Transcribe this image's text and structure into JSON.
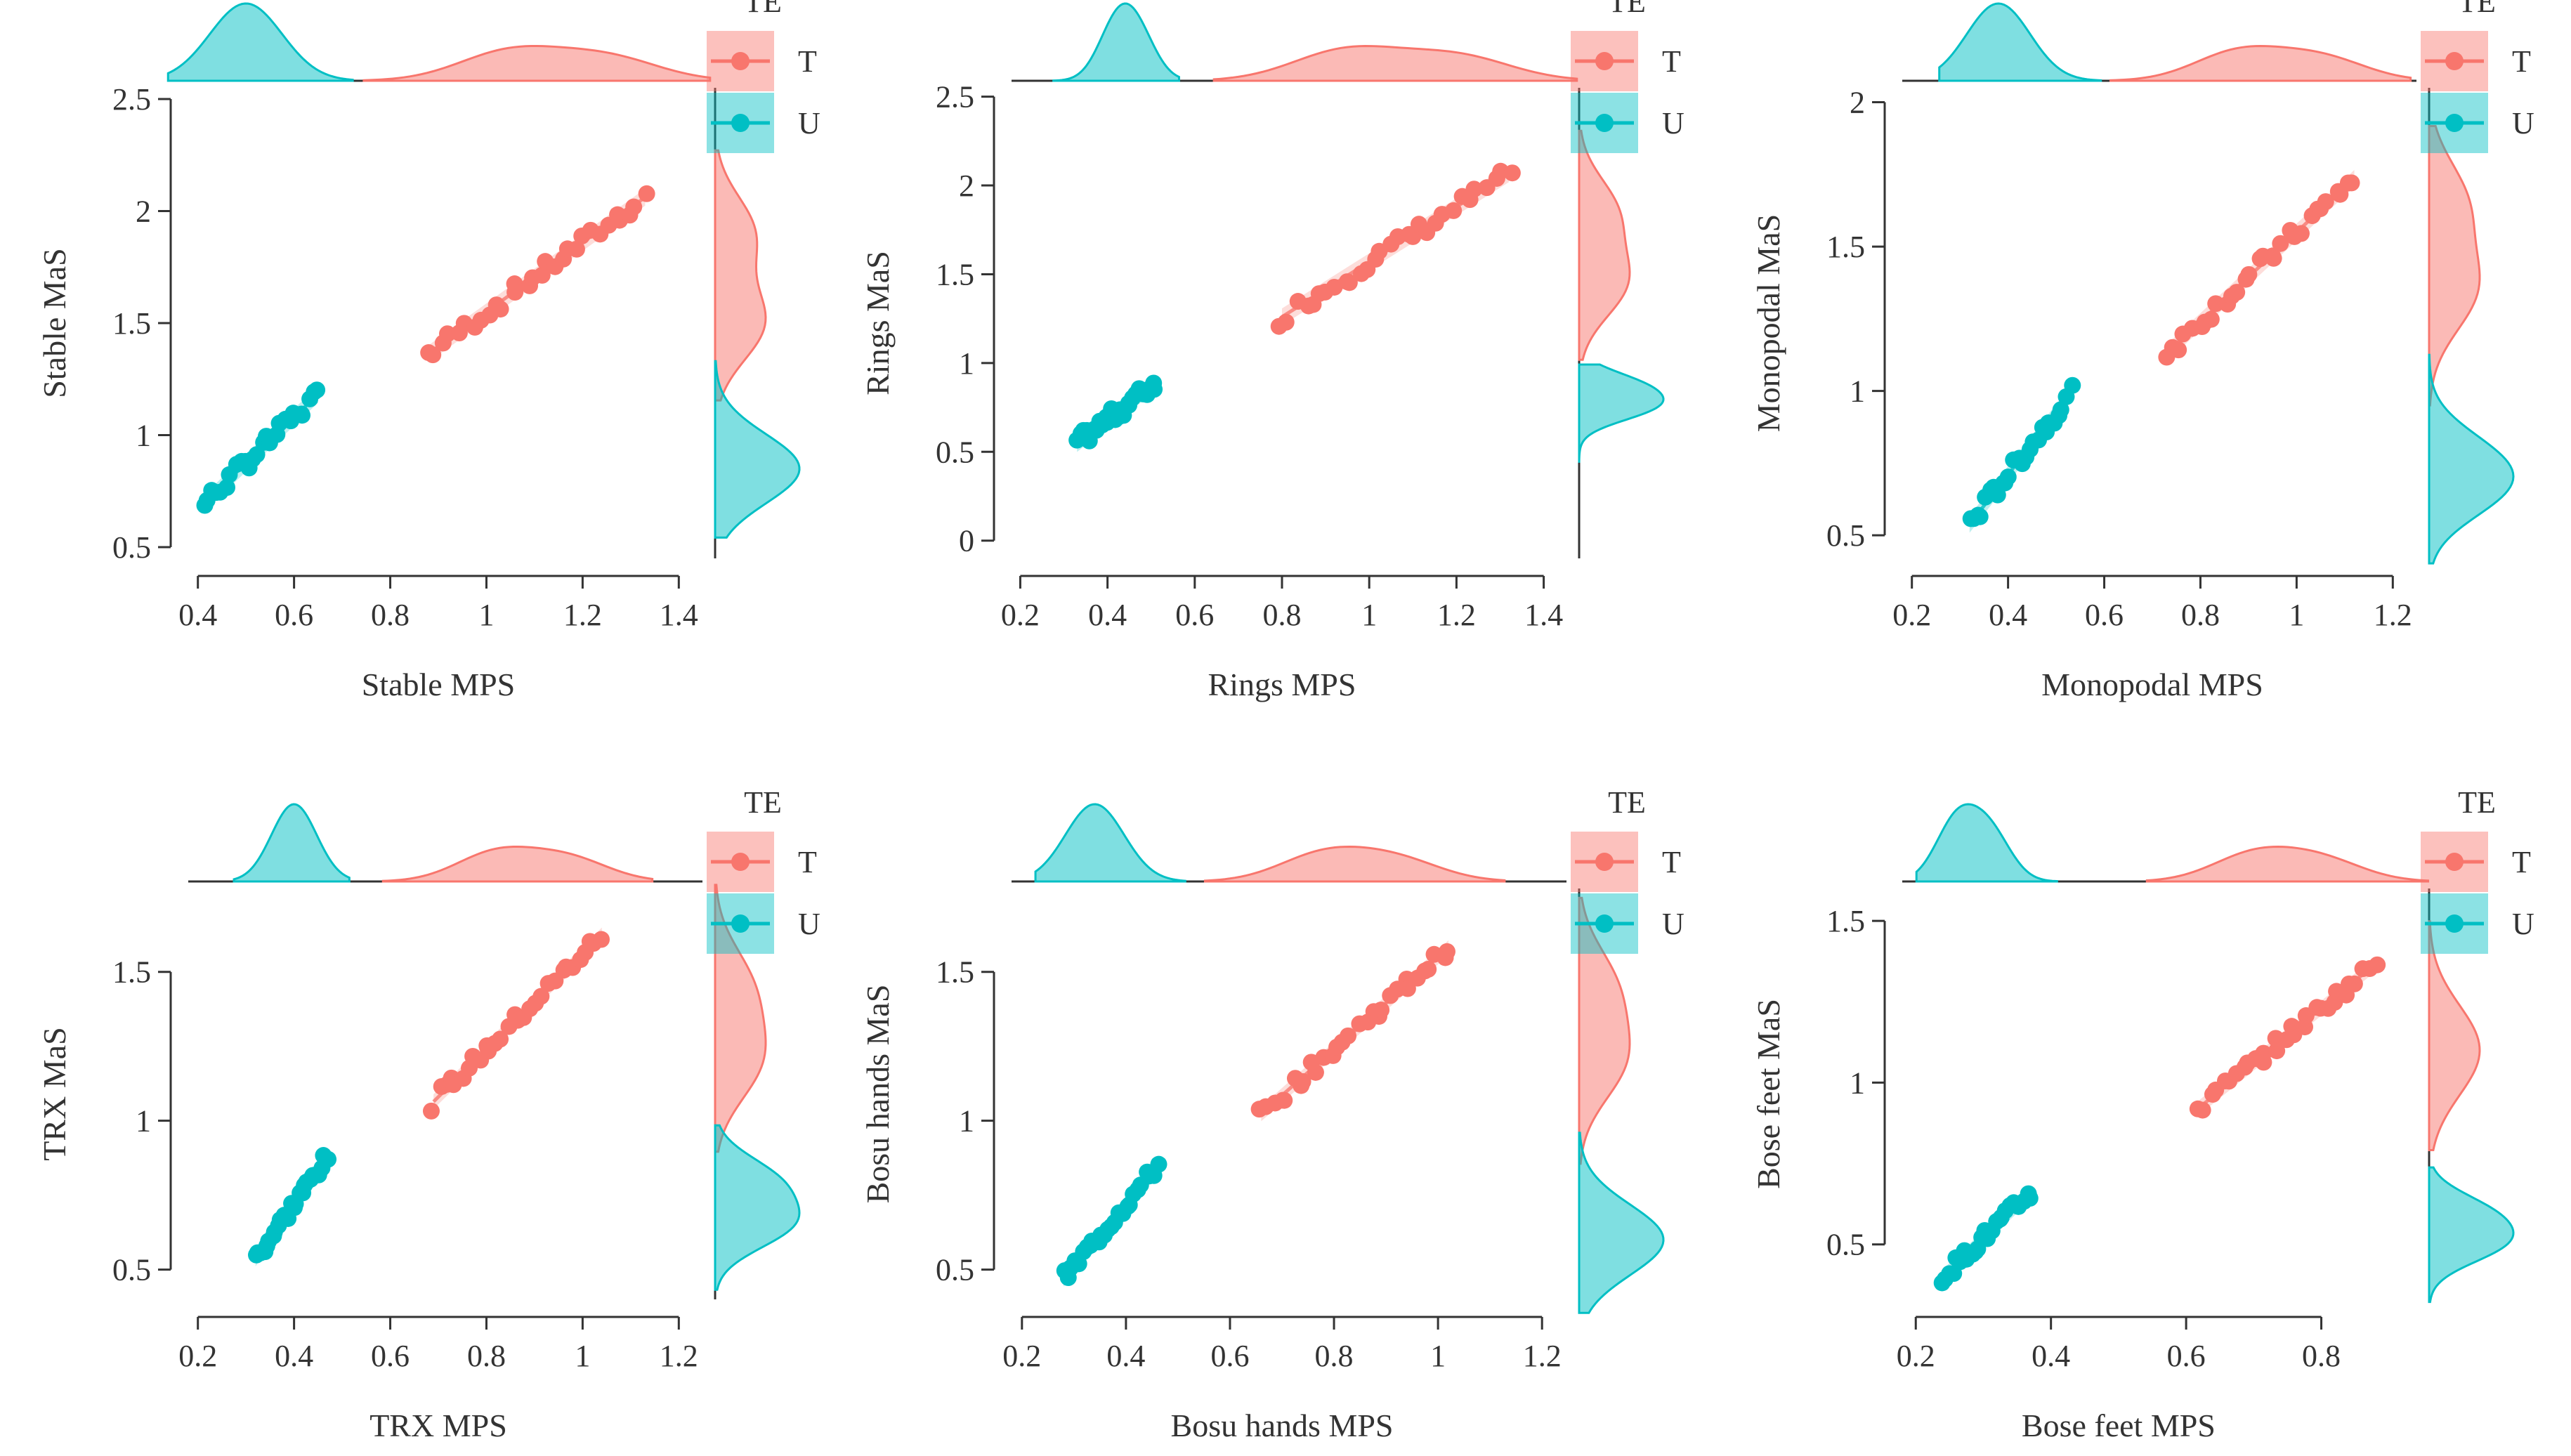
{
  "figure": {
    "legend_title": "TE",
    "groups": [
      "T",
      "U"
    ],
    "colors": {
      "T": "#F8766D",
      "U": "#00BFC4"
    }
  },
  "chart_data": [
    {
      "type": "scatter",
      "xlabel": "Stable MPS",
      "ylabel": "Stable MaS",
      "xlim": [
        0.38,
        1.42
      ],
      "ylim": [
        0.45,
        2.55
      ],
      "xticks": [
        0.4,
        0.6,
        0.8,
        1,
        1.2,
        1.4
      ],
      "yticks": [
        0.5,
        1,
        1.5,
        2,
        2.5
      ],
      "legend": {
        "title": "TE",
        "entries": [
          "T",
          "U"
        ]
      },
      "series": [
        {
          "name": "T",
          "x_range": [
            0.88,
            1.33
          ],
          "slope": 1.55,
          "intercept": 0.0,
          "n": 30,
          "density_x_peaks": [
            1.05,
            1.25
          ],
          "density_y_peaks": [
            1.5,
            1.9
          ]
        },
        {
          "name": "U",
          "x_range": [
            0.41,
            0.65
          ],
          "slope": 2.05,
          "intercept": -0.15,
          "n": 26,
          "density_x_peaks": [
            0.5
          ],
          "density_y_peaks": [
            0.85
          ]
        }
      ]
    },
    {
      "type": "scatter",
      "xlabel": "Rings MPS",
      "ylabel": "Rings MaS",
      "xlim": [
        0.18,
        1.42
      ],
      "ylim": [
        -0.1,
        2.55
      ],
      "xticks": [
        0.2,
        0.4,
        0.6,
        0.8,
        1,
        1.2,
        1.4
      ],
      "yticks": [
        0,
        0.5,
        1,
        1.5,
        2,
        2.5
      ],
      "legend": {
        "title": "TE",
        "entries": [
          "T",
          "U"
        ]
      },
      "series": [
        {
          "name": "T",
          "x_range": [
            0.8,
            1.32
          ],
          "slope": 1.55,
          "intercept": 0.02,
          "n": 30,
          "density_x_peaks": [
            0.95,
            1.2
          ],
          "density_y_peaks": [
            1.45,
            1.85
          ]
        },
        {
          "name": "U",
          "x_range": [
            0.33,
            0.51
          ],
          "slope": 1.9,
          "intercept": -0.08,
          "n": 26,
          "density_x_peaks": [
            0.42,
            0.47
          ],
          "density_y_peaks": [
            0.75,
            0.88
          ]
        }
      ]
    },
    {
      "type": "scatter",
      "xlabel": "Monopodal MPS",
      "ylabel": "Monopodal MaS",
      "xlim": [
        0.18,
        1.22
      ],
      "ylim": [
        0.42,
        2.05
      ],
      "xticks": [
        0.2,
        0.4,
        0.6,
        0.8,
        1,
        1.2
      ],
      "yticks": [
        0.5,
        1,
        1.5,
        2
      ],
      "legend": {
        "title": "TE",
        "entries": [
          "T",
          "U"
        ]
      },
      "series": [
        {
          "name": "T",
          "x_range": [
            0.73,
            1.12
          ],
          "slope": 1.55,
          "intercept": 0.0,
          "n": 30,
          "density_x_peaks": [
            0.88,
            1.05
          ],
          "density_y_peaks": [
            1.35,
            1.65
          ]
        },
        {
          "name": "U",
          "x_range": [
            0.32,
            0.53
          ],
          "slope": 2.15,
          "intercept": -0.15,
          "n": 26,
          "density_x_peaks": [
            0.38
          ],
          "density_y_peaks": [
            0.65,
            0.78
          ]
        }
      ]
    },
    {
      "type": "scatter",
      "xlabel": "TRX MPS",
      "ylabel": "TRX MaS",
      "xlim": [
        0.18,
        1.22
      ],
      "ylim": [
        0.4,
        1.78
      ],
      "xticks": [
        0.2,
        0.4,
        0.6,
        0.8,
        1,
        1.2
      ],
      "yticks": [
        0.5,
        1,
        1.5
      ],
      "legend": {
        "title": "TE",
        "entries": [
          "T",
          "U"
        ]
      },
      "series": [
        {
          "name": "T",
          "x_range": [
            0.69,
            1.04
          ],
          "slope": 1.6,
          "intercept": -0.04,
          "n": 30,
          "density_x_peaks": [
            0.82,
            0.97
          ],
          "density_y_peaks": [
            1.2,
            1.45
          ]
        },
        {
          "name": "U",
          "x_range": [
            0.32,
            0.47
          ],
          "slope": 2.3,
          "intercept": -0.2,
          "n": 26,
          "density_x_peaks": [
            0.4
          ],
          "density_y_peaks": [
            0.65,
            0.8
          ]
        }
      ]
    },
    {
      "type": "scatter",
      "xlabel": "Bosu hands MPS",
      "ylabel": "Bosu hands MaS",
      "xlim": [
        0.18,
        1.22
      ],
      "ylim": [
        0.4,
        1.78
      ],
      "xticks": [
        0.2,
        0.4,
        0.6,
        0.8,
        1,
        1.2
      ],
      "yticks": [
        0.5,
        1,
        1.5
      ],
      "legend": {
        "title": "TE",
        "entries": [
          "T",
          "U"
        ]
      },
      "series": [
        {
          "name": "T",
          "x_range": [
            0.66,
            1.02
          ],
          "slope": 1.55,
          "intercept": 0.0,
          "n": 30,
          "density_x_peaks": [
            0.78,
            0.92
          ],
          "density_y_peaks": [
            1.2,
            1.45
          ]
        },
        {
          "name": "U",
          "x_range": [
            0.28,
            0.46
          ],
          "slope": 2.1,
          "intercept": -0.12,
          "n": 26,
          "density_x_peaks": [
            0.34
          ],
          "density_y_peaks": [
            0.6
          ]
        }
      ]
    },
    {
      "type": "scatter",
      "xlabel": "Bose feet MPS",
      "ylabel": "Bose feet MaS",
      "xlim": [
        0.18,
        0.92
      ],
      "ylim": [
        0.33,
        1.6
      ],
      "xticks": [
        0.2,
        0.4,
        0.6,
        0.8
      ],
      "yticks": [
        0.5,
        1,
        1.5
      ],
      "legend": {
        "title": "TE",
        "entries": [
          "T",
          "U"
        ]
      },
      "series": [
        {
          "name": "T",
          "x_range": [
            0.62,
            0.88
          ],
          "slope": 1.7,
          "intercept": -0.13,
          "n": 30,
          "density_x_peaks": [
            0.7,
            0.8
          ],
          "density_y_peaks": [
            1.1
          ]
        },
        {
          "name": "U",
          "x_range": [
            0.24,
            0.37
          ],
          "slope": 2.0,
          "intercept": -0.08,
          "n": 26,
          "density_x_peaks": [
            0.26,
            0.31
          ],
          "density_y_peaks": [
            0.5,
            0.6
          ]
        }
      ]
    }
  ]
}
